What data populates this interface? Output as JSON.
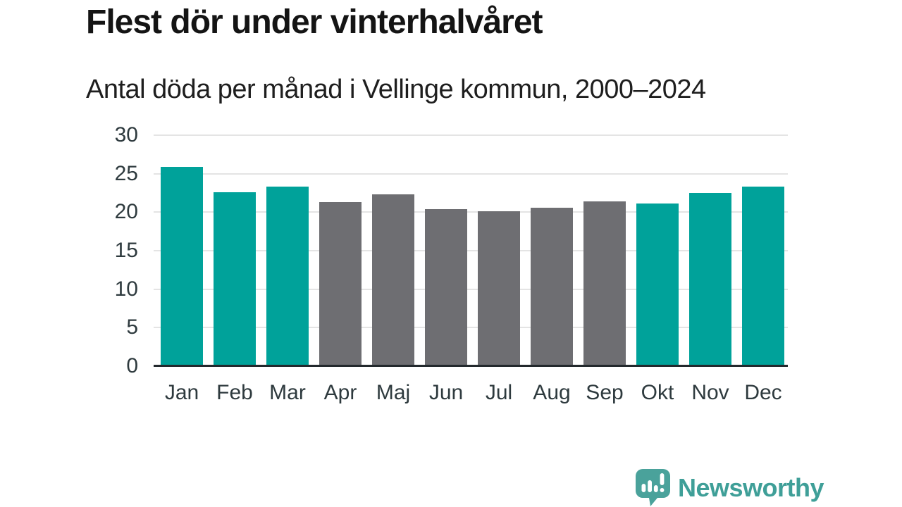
{
  "header": {
    "title": "Flest dör under vinterhalvåret",
    "subtitle": "Antal döda per månad i Vellinge kommun, 2000–2024"
  },
  "chart_data": {
    "type": "bar",
    "title": "Flest dör under vinterhalvåret",
    "subtitle": "Antal döda per månad i Vellinge kommun, 2000–2024",
    "categories": [
      "Jan",
      "Feb",
      "Mar",
      "Apr",
      "Maj",
      "Jun",
      "Jul",
      "Aug",
      "Sep",
      "Okt",
      "Nov",
      "Dec"
    ],
    "values": [
      25.9,
      22.6,
      23.3,
      21.3,
      22.3,
      20.4,
      20.1,
      20.6,
      21.4,
      21.1,
      22.5,
      23.3
    ],
    "bar_groups": [
      "winter",
      "winter",
      "winter",
      "summer",
      "summer",
      "summer",
      "summer",
      "summer",
      "summer",
      "winter",
      "winter",
      "winter"
    ],
    "colors": {
      "winter": "#00a29a",
      "summer": "#6e6e72"
    },
    "xlabel": "",
    "ylabel": "",
    "ylim": [
      0,
      30
    ],
    "yticks": [
      0,
      5,
      10,
      15,
      20,
      25,
      30
    ],
    "grid": true,
    "gridline_color": "#e4e4e4",
    "axis_line_color": "#23292d",
    "legend": false
  },
  "footer": {
    "brand": "Newsworthy",
    "brand_color": "#3f9f98",
    "icon_color": "#4aa29b"
  }
}
